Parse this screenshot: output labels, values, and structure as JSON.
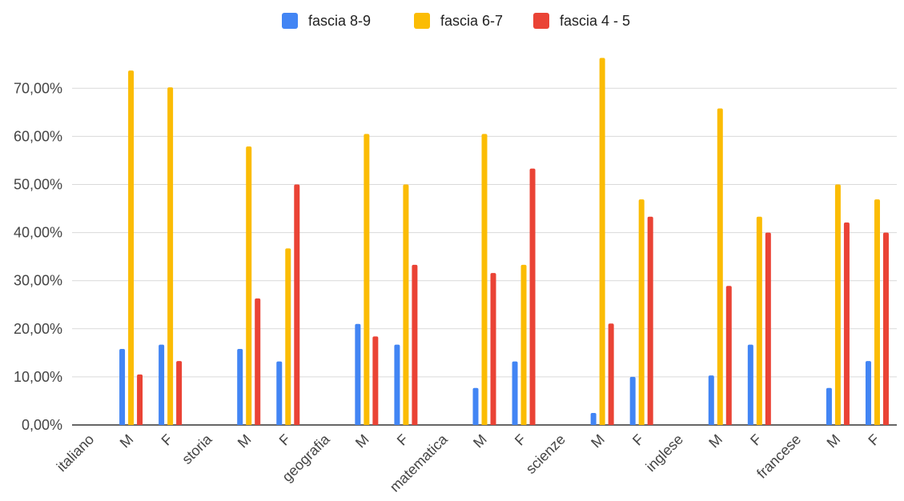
{
  "chart_data": {
    "type": "bar",
    "title": "",
    "xlabel": "",
    "ylabel": "",
    "categories": [
      "italiano",
      "M",
      "F",
      "storia",
      "M",
      "F",
      "geografia",
      "M",
      "F",
      "matematica",
      "M",
      "F",
      "scienze",
      "M",
      "F",
      "inglese",
      "M",
      "F",
      "francese",
      "M",
      "F"
    ],
    "series": [
      {
        "name": "fascia 8-9",
        "color": "#4285F4",
        "values": [
          0,
          15.8,
          16.7,
          0,
          15.8,
          13.2,
          0,
          21.0,
          16.7,
          0,
          7.7,
          13.2,
          0,
          2.5,
          10.0,
          0,
          10.3,
          16.7,
          0,
          7.7,
          13.3
        ]
      },
      {
        "name": "fascia 6-7",
        "color": "#FBBC04",
        "values": [
          0,
          73.7,
          70.2,
          0,
          57.9,
          36.7,
          0,
          60.5,
          50.0,
          0,
          60.5,
          33.3,
          0,
          76.3,
          46.9,
          0,
          65.8,
          43.3,
          0,
          50.0,
          46.9
        ]
      },
      {
        "name": "fascia 4 - 5",
        "color": "#EA4335",
        "values": [
          0,
          10.5,
          13.3,
          0,
          26.3,
          50.0,
          0,
          18.4,
          33.3,
          0,
          31.6,
          53.3,
          0,
          21.1,
          43.3,
          0,
          28.9,
          40.0,
          0,
          42.1,
          40.0
        ]
      }
    ],
    "ylim": [
      0,
      80
    ],
    "y_ticks": [
      0,
      10,
      20,
      30,
      40,
      50,
      60,
      70
    ],
    "y_tick_labels": [
      "0,00%",
      "10,00%",
      "20,00%",
      "30,00%",
      "40,00%",
      "50,00%",
      "60,00%",
      "70,00%"
    ],
    "grid": true,
    "legend_position": "top-center"
  }
}
